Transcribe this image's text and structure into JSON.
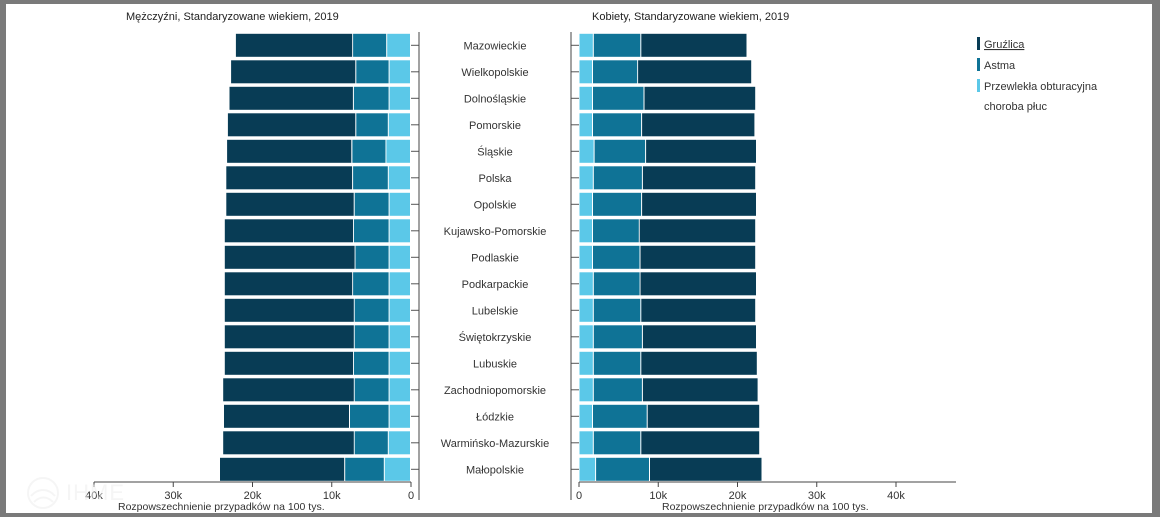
{
  "chart_data": {
    "type": "bar",
    "subtype": "stacked-horizontal-butterfly",
    "left_title": "Mężczyźni, Standaryzowane wiekiem, 2019",
    "right_title": "Kobiety, Standaryzowane wiekiem, 2019",
    "xlabel": "Rozpowszechnienie przypadków na 100 tys.",
    "left_ticks": [
      "40k",
      "30k",
      "20k",
      "10k",
      "0"
    ],
    "right_ticks": [
      "0",
      "10k",
      "20k",
      "30k",
      "40k"
    ],
    "xlim": [
      0,
      40000
    ],
    "categories": [
      "Mazowieckie",
      "Wielkopolskie",
      "Dolnośląskie",
      "Pomorskie",
      "Śląskie",
      "Polska",
      "Opolskie",
      "Kujawsko-Pomorskie",
      "Podlaskie",
      "Podkarpackie",
      "Lubelskie",
      "Świętokrzyskie",
      "Lubuskie",
      "Zachodniopomorskie",
      "Łódzkie",
      "Warmińsko-Mazurskie",
      "Małopolskie"
    ],
    "legend_position": "right",
    "series": [
      {
        "name": "Przewlekła obturacyjna choroba płuc",
        "color": "#5bc8e8",
        "male": [
          3000,
          2700,
          2700,
          2800,
          3100,
          2800,
          2700,
          2700,
          2700,
          2700,
          2700,
          2700,
          2700,
          2700,
          2700,
          2800,
          3300
        ],
        "female": [
          1800,
          1700,
          1700,
          1700,
          1900,
          1800,
          1700,
          1700,
          1700,
          1800,
          1800,
          1800,
          1800,
          1800,
          1700,
          1800,
          2100
        ]
      },
      {
        "name": "Astma",
        "color": "#0f7396",
        "male": [
          4300,
          4200,
          4500,
          4100,
          4300,
          4500,
          4400,
          4500,
          4300,
          4600,
          4400,
          4400,
          4500,
          4400,
          5000,
          4300,
          5000
        ],
        "female": [
          6000,
          5700,
          6500,
          6200,
          6500,
          6200,
          6200,
          5900,
          6000,
          5900,
          6000,
          6200,
          6000,
          6200,
          6900,
          6000,
          6800
        ]
      },
      {
        "name": "Gruźlica",
        "color": "#083c55",
        "male": [
          14800,
          15800,
          15700,
          16200,
          15800,
          16000,
          16200,
          16300,
          16500,
          16200,
          16400,
          16400,
          16300,
          16600,
          15900,
          16600,
          15800
        ],
        "female": [
          13400,
          14400,
          14100,
          14300,
          14000,
          14300,
          14500,
          14700,
          14600,
          14700,
          14500,
          14400,
          14700,
          14600,
          14200,
          15000,
          14200
        ]
      }
    ]
  },
  "legend": {
    "items": [
      {
        "label": "Gruźlica",
        "color": "#083c55"
      },
      {
        "label": "Astma",
        "color": "#0f7396"
      },
      {
        "label": "Przewlekła obturacyjna",
        "label2": "choroba płuc",
        "color": "#5bc8e8"
      }
    ]
  },
  "logo": {
    "text": "IHME"
  }
}
